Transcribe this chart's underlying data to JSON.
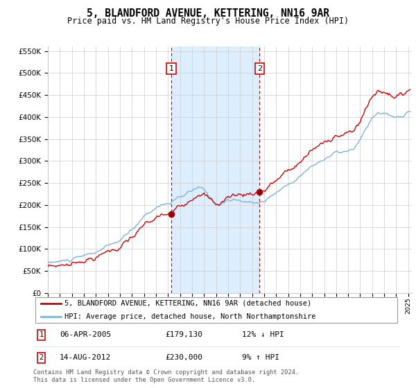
{
  "title": "5, BLANDFORD AVENUE, KETTERING, NN16 9AR",
  "subtitle": "Price paid vs. HM Land Registry's House Price Index (HPI)",
  "legend_line1": "5, BLANDFORD AVENUE, KETTERING, NN16 9AR (detached house)",
  "legend_line2": "HPI: Average price, detached house, North Northamptonshire",
  "annotation1_date": "06-APR-2005",
  "annotation1_price": "£179,130",
  "annotation1_hpi": "12% ↓ HPI",
  "annotation2_date": "14-AUG-2012",
  "annotation2_price": "£230,000",
  "annotation2_hpi": "9% ↑ HPI",
  "footer": "Contains HM Land Registry data © Crown copyright and database right 2024.\nThis data is licensed under the Open Government Licence v3.0.",
  "red_line_color": "#cc0000",
  "blue_line_color": "#7fb3d3",
  "shaded_color": "#ddeeff",
  "annotation_box_color": "#cc0000",
  "grid_color": "#cccccc",
  "background_color": "#ffffff",
  "ylim": [
    0,
    560000
  ],
  "yticks": [
    0,
    50000,
    100000,
    150000,
    200000,
    250000,
    300000,
    350000,
    400000,
    450000,
    500000,
    550000
  ],
  "sale1_x": 2005.27,
  "sale1_y": 179130,
  "sale2_x": 2012.62,
  "sale2_y": 230000,
  "xmin": 1995.0,
  "xmax": 2025.3
}
